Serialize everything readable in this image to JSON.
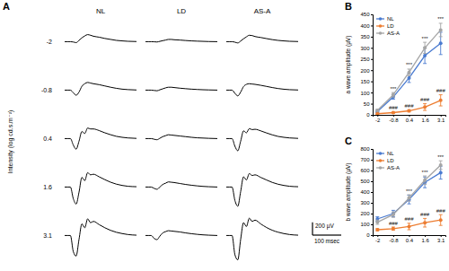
{
  "chart_data": [
    {
      "type": "trace",
      "title": "A",
      "columns": [
        "NL",
        "LD",
        "AS-A"
      ],
      "rows": [
        "-2",
        "-0.8",
        "0.4",
        "1.6",
        "3.1"
      ],
      "ylabel": "Intensity (log cd.s.m⁻²)",
      "tick_labels": false,
      "xlim": [
        0,
        250
      ],
      "ylim": [
        -400,
        300
      ],
      "x": [
        0,
        10,
        20,
        30,
        40,
        50,
        60,
        70,
        80,
        90,
        100,
        120,
        140,
        160,
        180,
        200,
        220,
        250
      ],
      "traces": [
        [
          [
            0,
            0,
            0,
            -5,
            -15,
            20,
            60,
            90,
            110,
            100,
            85,
            70,
            50,
            35,
            20,
            12,
            6,
            2
          ],
          [
            0,
            0,
            0,
            -2,
            -5,
            5,
            15,
            25,
            35,
            35,
            30,
            25,
            18,
            12,
            8,
            5,
            2,
            0
          ],
          [
            0,
            0,
            0,
            -8,
            -20,
            10,
            45,
            75,
            100,
            95,
            80,
            65,
            48,
            32,
            20,
            12,
            6,
            2
          ]
        ],
        [
          [
            0,
            0,
            0,
            -40,
            -80,
            -30,
            60,
            100,
            120,
            110,
            100,
            85,
            65,
            45,
            28,
            15,
            8,
            2
          ],
          [
            0,
            0,
            0,
            -5,
            -10,
            5,
            20,
            35,
            45,
            45,
            40,
            30,
            22,
            15,
            10,
            6,
            3,
            0
          ],
          [
            0,
            0,
            0,
            -50,
            -90,
            -30,
            55,
            90,
            100,
            95,
            90,
            75,
            58,
            40,
            25,
            14,
            7,
            2
          ]
        ],
        [
          [
            0,
            0,
            0,
            -100,
            -165,
            -40,
            110,
            80,
            165,
            150,
            150,
            125,
            90,
            60,
            35,
            20,
            10,
            3
          ],
          [
            0,
            0,
            0,
            -10,
            -18,
            5,
            30,
            45,
            60,
            55,
            50,
            40,
            30,
            20,
            12,
            8,
            4,
            0
          ],
          [
            0,
            0,
            0,
            -120,
            -190,
            -40,
            120,
            90,
            155,
            140,
            145,
            120,
            88,
            58,
            34,
            20,
            10,
            3
          ]
        ],
        [
          [
            0,
            0,
            0,
            -180,
            -265,
            -80,
            150,
            100,
            225,
            190,
            200,
            160,
            115,
            75,
            45,
            25,
            12,
            5
          ],
          [
            0,
            0,
            0,
            -20,
            -35,
            0,
            40,
            60,
            80,
            75,
            70,
            55,
            40,
            28,
            18,
            10,
            5,
            0
          ],
          [
            0,
            0,
            0,
            -210,
            -300,
            -70,
            160,
            110,
            210,
            180,
            190,
            150,
            110,
            72,
            44,
            25,
            12,
            5
          ]
        ],
        [
          [
            0,
            0,
            0,
            -250,
            -320,
            -60,
            180,
            120,
            260,
            200,
            220,
            170,
            120,
            80,
            50,
            30,
            15,
            5
          ],
          [
            0,
            0,
            0,
            -45,
            -65,
            -10,
            40,
            60,
            75,
            70,
            65,
            55,
            40,
            28,
            18,
            10,
            5,
            0
          ],
          [
            0,
            0,
            0,
            -300,
            -380,
            -60,
            200,
            140,
            270,
            220,
            240,
            180,
            125,
            82,
            52,
            30,
            15,
            5
          ]
        ]
      ],
      "scale_bar": {
        "y": 200,
        "y_label": "200 µV",
        "x": 100,
        "x_label": "100 msec"
      }
    },
    {
      "type": "line",
      "title": "B",
      "categories": [
        "-2",
        "-0.8",
        "0.4",
        "1.6",
        "3.1"
      ],
      "ylabel": "a wave amplitude (µV)",
      "ylim": [
        0,
        450
      ],
      "yticks": [
        0,
        50,
        100,
        150,
        200,
        250,
        300,
        350,
        400,
        450
      ],
      "legend": "upper left",
      "marker": "circle",
      "series": [
        {
          "name": "NL",
          "color": "#4a7bd0",
          "values": [
            15,
            80,
            165,
            265,
            320
          ],
          "errors": [
            5,
            10,
            20,
            35,
            50
          ]
        },
        {
          "name": "LD",
          "color": "#ed7d31",
          "values": [
            5,
            10,
            18,
            35,
            65
          ],
          "errors": [
            2,
            3,
            5,
            15,
            25
          ]
        },
        {
          "name": "AS-A",
          "color": "#a5a5a5",
          "values": [
            20,
            90,
            190,
            300,
            380
          ],
          "errors": [
            5,
            10,
            15,
            25,
            30
          ]
        }
      ],
      "annotations": [
        {
          "text": "***",
          "x": "-0.8",
          "series": "AS-A"
        },
        {
          "text": "***",
          "x": "0.4",
          "series": "AS-A"
        },
        {
          "text": "***",
          "x": "1.6",
          "series": "AS-A"
        },
        {
          "text": "***",
          "x": "3.1",
          "series": "AS-A"
        },
        {
          "text": "###",
          "x": "-0.8",
          "series": "LD"
        },
        {
          "text": "###",
          "x": "0.4",
          "series": "LD"
        },
        {
          "text": "###",
          "x": "1.6",
          "series": "LD"
        },
        {
          "text": "###",
          "x": "3.1",
          "series": "LD"
        }
      ]
    },
    {
      "type": "line",
      "title": "C",
      "categories": [
        "-2",
        "-0.8",
        "0.4",
        "1.6",
        "3.1"
      ],
      "ylabel": "b wave amplitude (µV)",
      "ylim": [
        0,
        800
      ],
      "yticks": [
        0,
        100,
        200,
        300,
        400,
        500,
        600,
        700,
        800
      ],
      "legend": "upper left",
      "marker": "circle",
      "series": [
        {
          "name": "NL",
          "color": "#4a7bd0",
          "values": [
            150,
            200,
            330,
            490,
            580
          ],
          "errors": [
            20,
            30,
            40,
            50,
            60
          ]
        },
        {
          "name": "LD",
          "color": "#ed7d31",
          "values": [
            50,
            60,
            80,
            115,
            140
          ],
          "errors": [
            10,
            15,
            30,
            40,
            50
          ]
        },
        {
          "name": "AS-A",
          "color": "#a5a5a5",
          "values": [
            120,
            190,
            345,
            510,
            650
          ],
          "errors": [
            20,
            25,
            30,
            40,
            40
          ]
        }
      ],
      "annotations": [
        {
          "text": "***",
          "x": "0.4",
          "series": "AS-A"
        },
        {
          "text": "***",
          "x": "1.6",
          "series": "AS-A"
        },
        {
          "text": "***",
          "x": "3.1",
          "series": "AS-A"
        },
        {
          "text": "###",
          "x": "-0.8",
          "series": "LD"
        },
        {
          "text": "###",
          "x": "0.4",
          "series": "LD"
        },
        {
          "text": "###",
          "x": "1.6",
          "series": "LD"
        },
        {
          "text": "###",
          "x": "3.1",
          "series": "LD"
        }
      ]
    }
  ]
}
